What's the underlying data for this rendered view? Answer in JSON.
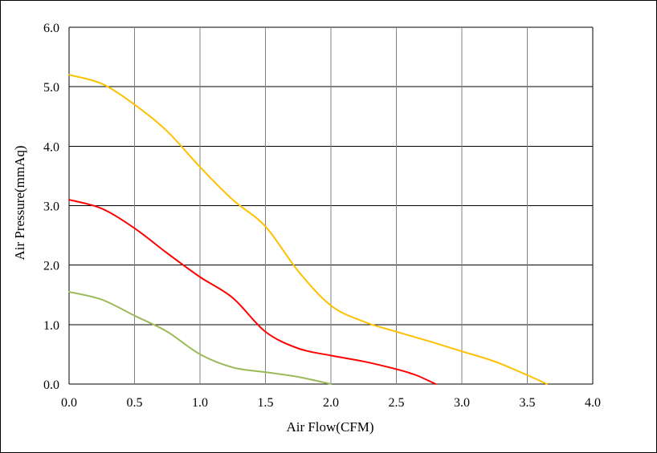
{
  "chart_data": {
    "type": "line",
    "title": "",
    "xlabel": "Air Flow(CFM)",
    "ylabel": "Air Pressure(mmAq)",
    "xlim": [
      0.0,
      4.0
    ],
    "ylim": [
      0.0,
      6.0
    ],
    "x_ticks": [
      "0.0",
      "0.5",
      "1.0",
      "1.5",
      "2.0",
      "2.5",
      "3.0",
      "3.5",
      "4.0"
    ],
    "y_ticks": [
      "0.0",
      "1.0",
      "2.0",
      "3.0",
      "4.0",
      "5.0",
      "6.0"
    ],
    "grid": true,
    "legend": "none",
    "series": [
      {
        "color": "#FFC000",
        "points": [
          [
            0.0,
            5.2
          ],
          [
            0.25,
            5.05
          ],
          [
            0.5,
            4.7
          ],
          [
            0.75,
            4.25
          ],
          [
            1.0,
            3.65
          ],
          [
            1.25,
            3.1
          ],
          [
            1.5,
            2.65
          ],
          [
            1.75,
            1.9
          ],
          [
            2.0,
            1.32
          ],
          [
            2.25,
            1.05
          ],
          [
            2.5,
            0.88
          ],
          [
            2.75,
            0.72
          ],
          [
            3.0,
            0.55
          ],
          [
            3.25,
            0.38
          ],
          [
            3.5,
            0.15
          ],
          [
            3.65,
            0.0
          ]
        ]
      },
      {
        "color": "#FF0000",
        "points": [
          [
            0.0,
            3.1
          ],
          [
            0.25,
            2.95
          ],
          [
            0.5,
            2.62
          ],
          [
            0.75,
            2.2
          ],
          [
            1.0,
            1.8
          ],
          [
            1.25,
            1.45
          ],
          [
            1.5,
            0.88
          ],
          [
            1.75,
            0.6
          ],
          [
            2.0,
            0.48
          ],
          [
            2.25,
            0.38
          ],
          [
            2.5,
            0.25
          ],
          [
            2.65,
            0.15
          ],
          [
            2.8,
            0.0
          ]
        ]
      },
      {
        "color": "#9BBB59",
        "points": [
          [
            0.0,
            1.55
          ],
          [
            0.25,
            1.42
          ],
          [
            0.5,
            1.15
          ],
          [
            0.75,
            0.88
          ],
          [
            1.0,
            0.5
          ],
          [
            1.25,
            0.28
          ],
          [
            1.5,
            0.2
          ],
          [
            1.75,
            0.12
          ],
          [
            2.0,
            0.0
          ]
        ]
      }
    ]
  }
}
